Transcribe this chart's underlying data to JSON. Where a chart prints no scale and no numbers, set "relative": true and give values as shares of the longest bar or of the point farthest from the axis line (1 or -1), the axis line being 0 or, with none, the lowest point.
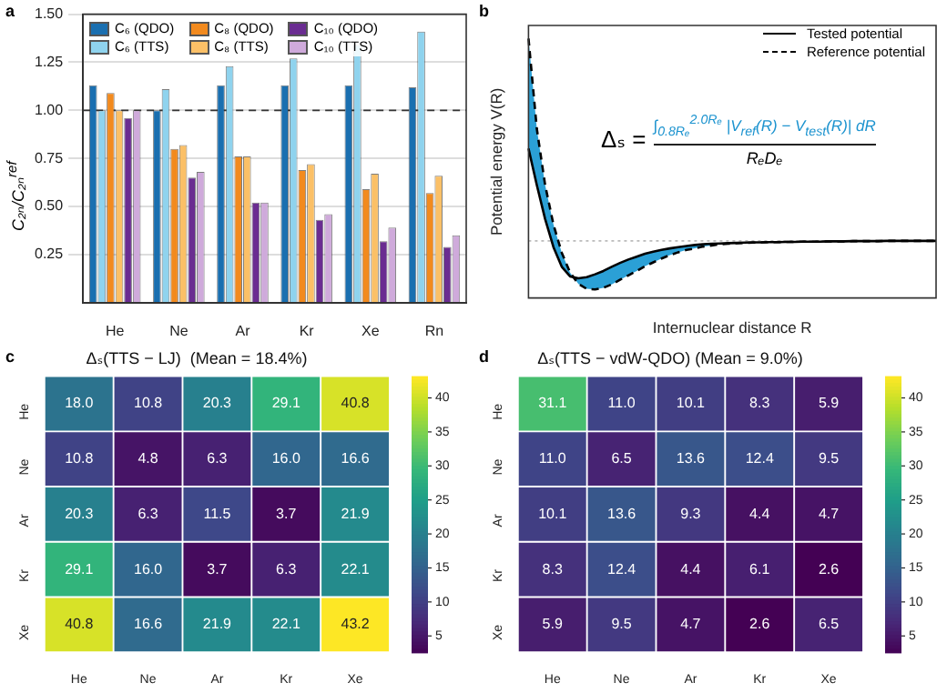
{
  "chart_data": [
    {
      "type": "bar",
      "annotations": [
        "a"
      ],
      "ylabel": "C₂ₙ/C₂ₙ$^{ref}$",
      "categories": [
        "He",
        "Ne",
        "Ar",
        "Kr",
        "Xe",
        "Rn"
      ],
      "ylim": [
        0,
        1.5
      ],
      "yticks": [
        0.25,
        {
          "value": 0.5,
          "label": "0.50"
        },
        0.75,
        {
          "value": 1,
          "label": "1.00"
        },
        1.25,
        {
          "value": 1.5,
          "label": "1.50"
        }
      ],
      "grid": "y",
      "legend": "top left",
      "ref_lines": [
        {
          "axis": "y",
          "value": 1,
          "line_style": "dashed",
          "color": "#333333"
        }
      ],
      "series": [
        {
          "name": "C₆ (QDO)",
          "color": "#1a6fb0",
          "values": [
            1.13,
            1.0,
            1.13,
            1.13,
            1.13,
            1.12
          ]
        },
        {
          "name": "C₆ (TTS)",
          "color": "#8fd3ee",
          "values": [
            1.0,
            1.11,
            1.23,
            1.27,
            1.34,
            1.41
          ]
        },
        {
          "name": "C₈ (QDO)",
          "color": "#f28a1e",
          "values": [
            1.09,
            0.8,
            0.76,
            0.69,
            0.59,
            0.57
          ]
        },
        {
          "name": "C₈ (TTS)",
          "color": "#fbc067",
          "values": [
            1.0,
            0.82,
            0.76,
            0.72,
            0.67,
            0.66
          ]
        },
        {
          "name": "C₁₀ (QDO)",
          "color": "#6a2c91",
          "values": [
            0.96,
            0.65,
            0.52,
            0.43,
            0.32,
            0.29
          ]
        },
        {
          "name": "C₁₀ (TTS)",
          "color": "#cfaadb",
          "values": [
            1.0,
            0.68,
            0.52,
            0.46,
            0.39,
            0.35
          ]
        }
      ]
    },
    {
      "type": "line",
      "relative": true,
      "annotations": [
        "b",
        "Δₛ =",
        "∫$_{0.8Rₑ}$$^{2.0Rₑ}$ |V$_{ref}$(R) − V$_{test}$(R)| dR",
        "RₑDₑ"
      ],
      "xlabel": "Internuclear distance R",
      "ylabel": "Potential energy V(R)",
      "legend": "top right",
      "ref_lines": [
        {
          "axis": "y",
          "value": 0.22,
          "line_style": "dotted",
          "color": "#bbbbbb"
        }
      ],
      "categories": [
        null,
        null,
        null,
        null,
        null,
        null,
        null,
        null,
        null,
        null,
        null,
        null,
        null,
        null,
        null,
        null,
        null,
        null,
        null,
        null,
        null,
        null,
        null,
        null,
        null,
        null,
        null,
        null,
        null,
        null,
        null,
        null,
        null,
        null,
        null,
        null,
        null,
        null,
        null,
        null,
        null,
        null,
        null,
        null,
        null,
        null,
        null,
        null,
        null,
        null
      ],
      "series": [
        {
          "name": "Tested potential",
          "color": "#000000",
          "line_style": "solid",
          "values": [
            0.576,
            0.435,
            0.304,
            0.196,
            0.12,
            0.083,
            0.076,
            0.08,
            0.091,
            0.104,
            0.12,
            0.135,
            0.148,
            0.159,
            0.17,
            0.178,
            0.185,
            0.191,
            0.196,
            0.2,
            0.204,
            0.207,
            0.209,
            0.21,
            0.211,
            0.212,
            0.213,
            0.214,
            0.214,
            0.215,
            0.215,
            0.216,
            0.216,
            0.217,
            0.217,
            0.217,
            0.218,
            0.218,
            0.218,
            0.219,
            0.219,
            0.219,
            0.219,
            0.22,
            0.22,
            0.22,
            0.22,
            0.22,
            0.22,
            0.22
          ]
        },
        {
          "name": "Reference potential",
          "color": "#000000",
          "line_style": "dashed",
          "values": [
            1.0,
            0.652,
            0.435,
            0.283,
            0.174,
            0.098,
            0.054,
            0.035,
            0.033,
            0.039,
            0.052,
            0.07,
            0.087,
            0.104,
            0.122,
            0.137,
            0.152,
            0.165,
            0.176,
            0.185,
            0.191,
            0.198,
            0.202,
            0.207,
            0.209,
            0.211,
            0.212,
            0.213,
            0.214,
            0.215,
            0.215,
            0.216,
            0.216,
            0.217,
            0.217,
            0.217,
            0.218,
            0.218,
            0.218,
            0.219,
            0.219,
            0.219,
            0.219,
            0.22,
            0.22,
            0.22,
            0.22,
            0.22,
            0.22,
            0.22
          ]
        }
      ]
    },
    {
      "type": "heatmap",
      "data_labels": true,
      "annotations": [
        "c"
      ],
      "title": "Δₛ(TTS − LJ)  (Mean = 18.4%)",
      "categories": [
        "He",
        "Ne",
        "Ar",
        "Kr",
        "Xe"
      ],
      "y_categories": [
        "He",
        "Ne",
        "Ar",
        "Kr",
        "Xe"
      ],
      "clim": [
        2.6,
        43.2
      ],
      "cticks": [
        5,
        10,
        15,
        20,
        25,
        30,
        35,
        40
      ],
      "cells": [
        [
          18.0,
          10.8,
          20.3,
          29.1,
          40.8
        ],
        [
          10.8,
          4.8,
          6.3,
          16.0,
          16.6
        ],
        [
          20.3,
          6.3,
          11.5,
          3.7,
          21.9
        ],
        [
          29.1,
          16.0,
          3.7,
          6.3,
          22.1
        ],
        [
          40.8,
          16.6,
          21.9,
          22.1,
          43.2
        ]
      ],
      "cell_labels": [
        [
          "18.0",
          "10.8",
          "20.3",
          "29.1",
          "40.8"
        ],
        [
          "10.8",
          "4.8",
          "6.3",
          "16.0",
          "16.6"
        ],
        [
          "20.3",
          "6.3",
          "11.5",
          "3.7",
          "21.9"
        ],
        [
          "29.1",
          "16.0",
          "3.7",
          "6.3",
          "22.1"
        ],
        [
          "40.8",
          "16.6",
          "21.9",
          "22.1",
          "43.2"
        ]
      ]
    },
    {
      "type": "heatmap",
      "data_labels": true,
      "annotations": [
        "d"
      ],
      "title": "Δₛ(TTS − vdW-QDO) (Mean = 9.0%)",
      "categories": [
        "He",
        "Ne",
        "Ar",
        "Kr",
        "Xe"
      ],
      "y_categories": [
        "He",
        "Ne",
        "Ar",
        "Kr",
        "Xe"
      ],
      "clim": [
        2.6,
        43.2
      ],
      "cticks": [
        5,
        10,
        15,
        20,
        25,
        30,
        35,
        40
      ],
      "cells": [
        [
          31.1,
          11.0,
          10.1,
          8.3,
          5.9
        ],
        [
          11.0,
          6.5,
          13.6,
          12.4,
          9.5
        ],
        [
          10.1,
          13.6,
          9.3,
          4.4,
          4.7
        ],
        [
          8.3,
          12.4,
          4.4,
          6.1,
          2.6
        ],
        [
          5.9,
          9.5,
          4.7,
          2.6,
          6.5
        ]
      ],
      "cell_labels": [
        [
          "31.1",
          "11.0",
          "10.1",
          "8.3",
          "5.9"
        ],
        [
          "11.0",
          "6.5",
          "13.6",
          "12.4",
          "9.5"
        ],
        [
          "10.1",
          "13.6",
          "9.3",
          "4.4",
          "4.7"
        ],
        [
          "8.3",
          "12.4",
          "4.4",
          "6.1",
          "2.6"
        ],
        [
          "5.9",
          "9.5",
          "4.7",
          "2.6",
          "6.5"
        ]
      ]
    }
  ]
}
